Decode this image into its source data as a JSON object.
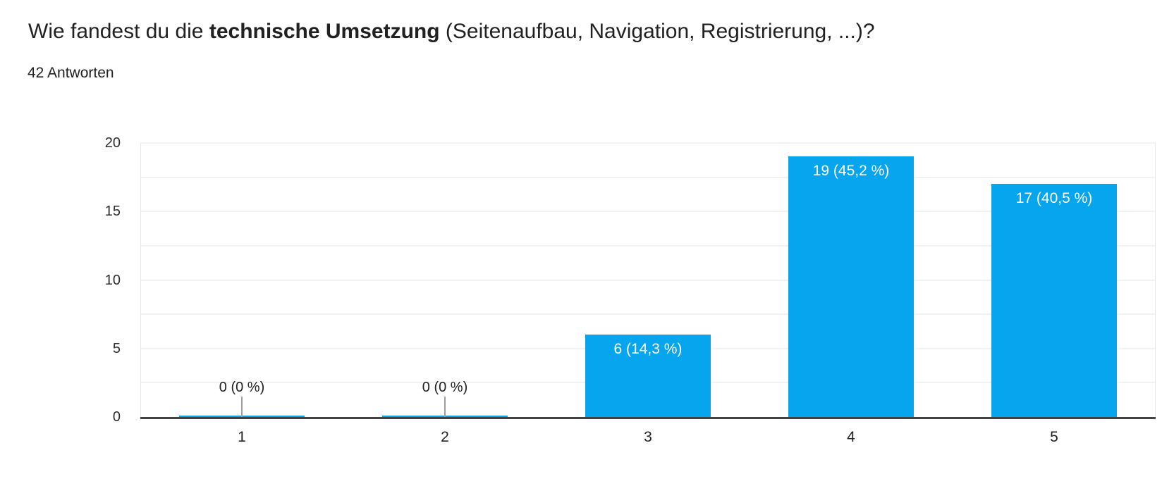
{
  "header": {
    "title_prefix": "Wie fandest du die ",
    "title_bold": "technische Umsetzung",
    "title_suffix": " (Seitenaufbau, Navigation, Registrierung, ...)?",
    "answers_count": "42 Antworten"
  },
  "chart_data": {
    "type": "bar",
    "title": "Wie fandest du die technische Umsetzung (Seitenaufbau, Navigation, Registrierung, ...)?",
    "subtitle": "42 Antworten",
    "categories": [
      "1",
      "2",
      "3",
      "4",
      "5"
    ],
    "values": [
      0,
      0,
      6,
      19,
      17
    ],
    "bar_labels": [
      "0 (0 %)",
      "0 (0 %)",
      "6 (14,3 %)",
      "19 (45,2 %)",
      "17 (40,5 %)"
    ],
    "y_ticks": [
      0,
      5,
      10,
      15,
      20
    ],
    "ylim": [
      0,
      20
    ],
    "minor_grid_step": 2.5,
    "xlabel": "",
    "ylabel": "",
    "grid": "horizontal gridlines every 2.5, light gray",
    "legend_position": "none",
    "colors": {
      "bar": "#07A5EE",
      "bar_label_text": "#FFFFFF",
      "axis_line": "#424242",
      "gridline": "#F2F2F2",
      "edge_line": "#E9E9E9",
      "tick": "#9E9E9E",
      "text": "#212121"
    }
  }
}
